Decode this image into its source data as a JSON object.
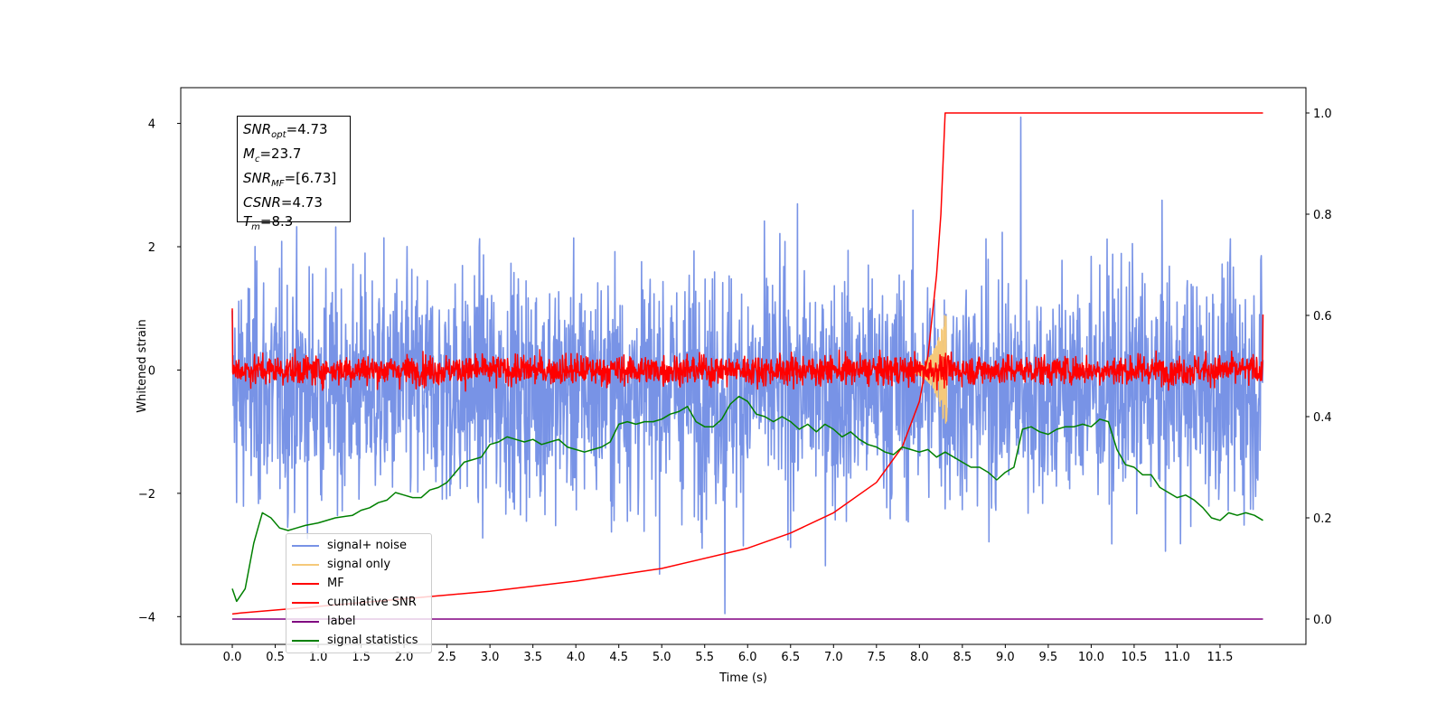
{
  "chart_data": {
    "type": "line",
    "xlabel": "Time (s)",
    "ylabel": "Whitened strain",
    "xlim": [
      -0.6,
      12.5
    ],
    "ylim_left": [
      -4.45,
      4.58
    ],
    "ylim_right": [
      -0.05,
      1.05
    ],
    "xticks": [
      "0.0",
      "0.5",
      "1.0",
      "1.5",
      "2.0",
      "2.5",
      "3.0",
      "3.5",
      "4.0",
      "4.5",
      "5.0",
      "5.5",
      "6.0",
      "6.5",
      "7.0",
      "7.5",
      "8.0",
      "8.5",
      "9.0",
      "9.5",
      "10.0",
      "10.5",
      "11.0",
      "11.5"
    ],
    "yticks_left": [
      -4,
      -2,
      0,
      2,
      4
    ],
    "yticks_right": [
      "0.0",
      "0.2",
      "0.4",
      "0.6",
      "0.8",
      "1.0"
    ],
    "grid": false,
    "legend_placement": "lower-left",
    "annotation": [
      {
        "sym": "SNR",
        "sub": "opt",
        "value": "=4.73"
      },
      {
        "sym": "M",
        "sub": "c",
        "value": "=23.7"
      },
      {
        "sym": "SNR",
        "sub": "MF",
        "value": "=[6.73]"
      },
      {
        "sym": "CSNR",
        "sub": "",
        "value": "=4.73"
      },
      {
        "sym": "T",
        "sub": "m",
        "value": "=8.3"
      }
    ],
    "series": [
      {
        "name": "signal+ noise",
        "color": "#7893e6",
        "axis": "left",
        "kind": "noise",
        "x_range": [
          0,
          12.0
        ],
        "center": -0.3,
        "sd": 0.95,
        "max": 4.1,
        "min": -3.95
      },
      {
        "name": "signal only",
        "color": "#f5c97a",
        "axis": "left",
        "kind": "chirp",
        "peak_time": 8.3,
        "peak_amp": 0.95
      },
      {
        "name": "MF",
        "color": "#ff0000",
        "axis": "left",
        "kind": "noise",
        "x_range": [
          0,
          12.0
        ],
        "center": 0.0,
        "sd": 0.12,
        "edge_start": 1.0,
        "edge_end": 0.9
      },
      {
        "name": "cumilative SNR",
        "color": "#ff0000",
        "axis": "right",
        "x": [
          0.0,
          0.1,
          1.0,
          2.0,
          3.0,
          4.0,
          5.0,
          6.0,
          6.5,
          7.0,
          7.5,
          7.8,
          8.0,
          8.1,
          8.2,
          8.25,
          8.3,
          12.0
        ],
        "y": [
          0.01,
          0.012,
          0.025,
          0.04,
          0.055,
          0.075,
          0.1,
          0.14,
          0.17,
          0.21,
          0.27,
          0.34,
          0.43,
          0.52,
          0.68,
          0.8,
          1.0,
          1.0
        ]
      },
      {
        "name": "label",
        "color": "#800080",
        "axis": "right",
        "x": [
          0.0,
          12.0
        ],
        "y": [
          0.0,
          0.0
        ]
      },
      {
        "name": "signal statistics",
        "color": "#008000",
        "axis": "right",
        "x": [
          0.0,
          0.05,
          0.15,
          0.25,
          0.3,
          0.35,
          0.45,
          0.55,
          0.65,
          0.75,
          0.85,
          1.0,
          1.2,
          1.4,
          1.5,
          1.6,
          1.7,
          1.8,
          1.9,
          2.0,
          2.1,
          2.2,
          2.3,
          2.4,
          2.5,
          2.6,
          2.7,
          2.8,
          2.9,
          3.0,
          3.1,
          3.2,
          3.3,
          3.4,
          3.5,
          3.6,
          3.7,
          3.8,
          3.9,
          4.0,
          4.1,
          4.2,
          4.3,
          4.4,
          4.5,
          4.6,
          4.7,
          4.8,
          4.9,
          5.0,
          5.1,
          5.2,
          5.3,
          5.4,
          5.5,
          5.6,
          5.7,
          5.8,
          5.9,
          6.0,
          6.1,
          6.2,
          6.3,
          6.4,
          6.5,
          6.6,
          6.7,
          6.8,
          6.9,
          7.0,
          7.1,
          7.2,
          7.3,
          7.4,
          7.5,
          7.6,
          7.7,
          7.8,
          7.9,
          8.0,
          8.1,
          8.2,
          8.3,
          8.4,
          8.5,
          8.6,
          8.7,
          8.8,
          8.9,
          9.0,
          9.1,
          9.2,
          9.3,
          9.4,
          9.5,
          9.6,
          9.7,
          9.8,
          9.9,
          10.0,
          10.1,
          10.2,
          10.3,
          10.4,
          10.5,
          10.6,
          10.7,
          10.8,
          10.9,
          11.0,
          11.1,
          11.2,
          11.3,
          11.4,
          11.5,
          11.6,
          11.7,
          11.8,
          11.9,
          12.0
        ],
        "y": [
          0.06,
          0.035,
          0.06,
          0.15,
          0.18,
          0.21,
          0.2,
          0.18,
          0.175,
          0.18,
          0.185,
          0.19,
          0.2,
          0.205,
          0.215,
          0.22,
          0.23,
          0.235,
          0.25,
          0.245,
          0.24,
          0.24,
          0.255,
          0.26,
          0.27,
          0.29,
          0.31,
          0.315,
          0.32,
          0.345,
          0.35,
          0.36,
          0.355,
          0.35,
          0.355,
          0.345,
          0.35,
          0.355,
          0.34,
          0.335,
          0.33,
          0.335,
          0.34,
          0.35,
          0.385,
          0.39,
          0.385,
          0.39,
          0.39,
          0.395,
          0.405,
          0.41,
          0.42,
          0.39,
          0.38,
          0.38,
          0.395,
          0.425,
          0.44,
          0.43,
          0.405,
          0.4,
          0.39,
          0.4,
          0.39,
          0.375,
          0.385,
          0.37,
          0.385,
          0.375,
          0.36,
          0.37,
          0.355,
          0.345,
          0.34,
          0.33,
          0.325,
          0.34,
          0.335,
          0.33,
          0.335,
          0.32,
          0.33,
          0.32,
          0.31,
          0.3,
          0.3,
          0.29,
          0.275,
          0.29,
          0.3,
          0.375,
          0.38,
          0.37,
          0.365,
          0.375,
          0.38,
          0.38,
          0.385,
          0.38,
          0.395,
          0.39,
          0.335,
          0.305,
          0.3,
          0.285,
          0.285,
          0.26,
          0.25,
          0.24,
          0.245,
          0.235,
          0.22,
          0.2,
          0.195,
          0.21,
          0.205,
          0.21,
          0.205,
          0.195
        ]
      }
    ]
  }
}
